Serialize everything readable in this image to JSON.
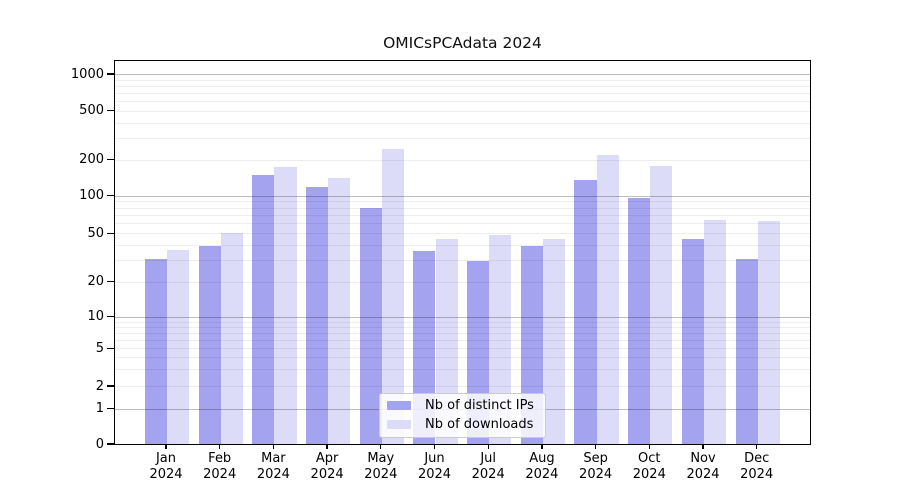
{
  "chart_data": {
    "type": "bar",
    "title": "OMICsPCAdata 2024",
    "categories": [
      "Jan 2024",
      "Feb 2024",
      "Mar 2024",
      "Apr 2024",
      "May 2024",
      "Jun 2024",
      "Jul 2024",
      "Aug 2024",
      "Sep 2024",
      "Oct 2024",
      "Nov 2024",
      "Dec 2024"
    ],
    "series": [
      {
        "name": "Nb of distinct IPs",
        "color": "#a3a3f0",
        "values": [
          31,
          40,
          150,
          120,
          80,
          36,
          30,
          40,
          137,
          96,
          45,
          31
        ]
      },
      {
        "name": "Nb of downloads",
        "color": "#dcdcf9",
        "values": [
          37,
          51,
          177,
          143,
          245,
          45,
          49,
          45,
          220,
          180,
          65,
          63
        ]
      }
    ],
    "yscale": "symlog",
    "yticks": [
      0,
      1,
      2,
      5,
      10,
      20,
      50,
      100,
      200,
      500,
      1000
    ],
    "ytick_labels": [
      "0",
      "1",
      "2",
      "5",
      "10",
      "20",
      "50",
      "100",
      "200",
      "500",
      "1000"
    ],
    "ylim": [
      0,
      1350
    ],
    "xlabel": "",
    "ylabel": "",
    "grid": true,
    "grid_minor": true,
    "legend_position": "bottom-center"
  }
}
